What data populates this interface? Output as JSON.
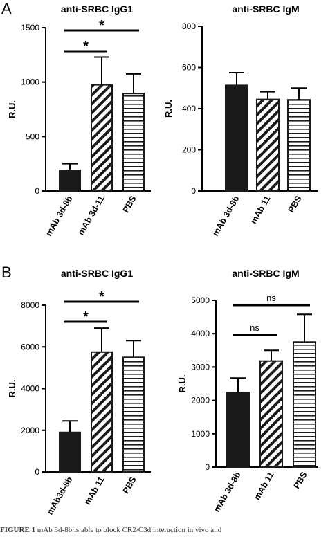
{
  "panels": [
    {
      "label": "A"
    },
    {
      "label": "B"
    }
  ],
  "chart_data": [
    {
      "type": "bar",
      "panel": "A",
      "title": "anti-SRBC IgG1",
      "ylabel": "R.U.",
      "ylim": [
        0,
        1500
      ],
      "yticks": [
        0,
        500,
        1000,
        1500
      ],
      "categories": [
        "mAb 3d-8b",
        "mAb 3d-11",
        "PBS"
      ],
      "values": [
        190,
        975,
        895
      ],
      "errors": [
        60,
        255,
        180
      ],
      "fills": [
        "solid",
        "diagonal",
        "horizontal"
      ],
      "comparisons": [
        {
          "from": 0,
          "to": 2,
          "label": "*"
        },
        {
          "from": 0,
          "to": 1,
          "label": "*"
        }
      ]
    },
    {
      "type": "bar",
      "panel": "A",
      "title": "anti-SRBC IgM",
      "ylabel": "R.U.",
      "ylim": [
        0,
        800
      ],
      "yticks": [
        0,
        200,
        400,
        600,
        800
      ],
      "categories": [
        "mAb 3d-8b",
        "mAb 11",
        "PBS"
      ],
      "values": [
        513,
        445,
        443
      ],
      "errors": [
        62,
        37,
        57
      ],
      "fills": [
        "solid",
        "diagonal",
        "horizontal"
      ],
      "comparisons": []
    },
    {
      "type": "bar",
      "panel": "B",
      "title": "anti-SRBC IgG1",
      "ylabel": "R.U.",
      "ylim": [
        0,
        8000
      ],
      "yticks": [
        0,
        2000,
        4000,
        6000,
        8000
      ],
      "categories": [
        "mAb3d-8b",
        "mAb 11",
        "PBS"
      ],
      "values": [
        1900,
        5750,
        5500
      ],
      "errors": [
        550,
        1150,
        800
      ],
      "fills": [
        "solid",
        "diagonal",
        "horizontal"
      ],
      "comparisons": [
        {
          "from": 0,
          "to": 2,
          "label": "*"
        },
        {
          "from": 0,
          "to": 1,
          "label": "*"
        }
      ]
    },
    {
      "type": "bar",
      "panel": "B",
      "title": "anti-SRBC IgM",
      "ylabel": "R.U.",
      "ylim": [
        0,
        5000
      ],
      "yticks": [
        0,
        1000,
        2000,
        3000,
        4000,
        5000
      ],
      "categories": [
        "mAb 3d-8b",
        "mAb 11",
        "PBS"
      ],
      "values": [
        2230,
        3180,
        3750
      ],
      "errors": [
        440,
        320,
        830
      ],
      "fills": [
        "solid",
        "diagonal",
        "horizontal"
      ],
      "comparisons": [
        {
          "from": 0,
          "to": 2,
          "label": "ns"
        },
        {
          "from": 0,
          "to": 1,
          "label": "ns"
        }
      ]
    }
  ],
  "caption": {
    "figure_label": "FIGURE 1",
    "text": " mAb 3d-8b is able to block CR2/C3d interaction in vivo and"
  }
}
